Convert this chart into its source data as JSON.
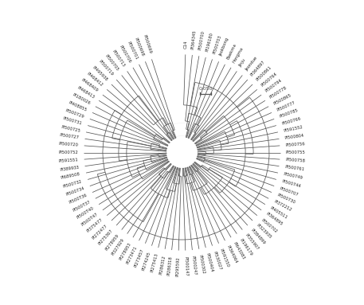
{
  "background_color": "#ffffff",
  "tree_color": "#555555",
  "label_fontsize": 3.8,
  "label_color": "#222222",
  "scale_bar_text": "0.050",
  "fig_width": 4.57,
  "fig_height": 3.83,
  "dpi": 100,
  "taxa_order": [
    "Jeokbong",
    "Baekma",
    "Hongma",
    "Jinju",
    "Jeondue",
    "PI364345",
    "C14",
    "PI500700",
    "PI196180",
    "PI500703",
    "PI364897",
    "PI500861",
    "PI500764",
    "PI500794",
    "PI500778",
    "PI500865",
    "PI500777",
    "PI500785",
    "PI500766",
    "PI591552",
    "PI500804",
    "PI500756",
    "PI500755",
    "PI500758",
    "PI500761",
    "PI500749",
    "PI500744",
    "PI500707",
    "PI500730",
    "PI372212",
    "PI405511",
    "PI364895",
    "PI500702",
    "PI323935",
    "PI384899",
    "PI355907",
    "PI196179",
    "PI643083",
    "PI364064",
    "PI591550",
    "PI530027",
    "PI500404",
    "PI500302",
    "PI500247",
    "PI500147",
    "PI500T47",
    "PI500T40",
    "PI500T37",
    "PI500T36",
    "PI500734",
    "PI500732",
    "PI689508",
    "PI389933",
    "PI591551",
    "PI500752",
    "PI500720",
    "PI500727",
    "PI500725",
    "PI500731",
    "PI500729",
    "PI408855",
    "PI180026",
    "PI468413",
    "PI468409",
    "PI468412",
    "PI500719",
    "PI500705",
    "PI500713",
    "PI500706",
    "PI500701",
    "PI500698",
    "PI500699",
    "PI495938",
    "PI295592",
    "PI286318",
    "PI286312",
    "PI275413",
    "PI274245",
    "PI273457",
    "PI273471",
    "PI278953",
    "PI327929",
    "PI278959",
    "PI275367",
    "PI272477",
    "PI375477"
  ]
}
